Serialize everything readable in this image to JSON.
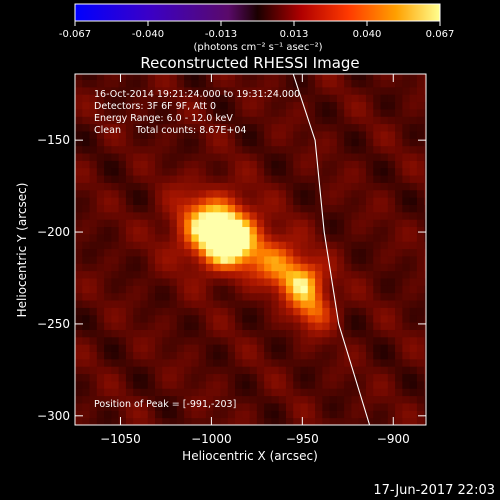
{
  "colorbar": {
    "ticks": [
      "-0.067",
      "-0.040",
      "-0.013",
      "0.013",
      "0.040",
      "0.067"
    ],
    "unit_label": "(photons cm⁻² s⁻¹ asec⁻²)"
  },
  "chart_data": {
    "type": "heatmap",
    "title": "Reconstructed RHESSI Image",
    "xlabel": "Heliocentric X (arcsec)",
    "ylabel": "Heliocentric Y (arcsec)",
    "xlim": [
      -1075,
      -882
    ],
    "ylim": [
      -305,
      -114
    ],
    "x_ticks": [
      -1050,
      -1000,
      -950,
      -900
    ],
    "y_ticks": [
      -150,
      -200,
      -250,
      -300
    ],
    "colormap": "black-purple-red-orange-yellow-white",
    "color_range": [
      -0.067,
      0.067
    ],
    "info": [
      "16-Oct-2014 19:21:24.000 to 19:31:24.000",
      "Detectors: 3F 6F 9F, Att 0",
      "Energy Range: 6.0 - 12.0 keV",
      "Clean     Total counts: 8.67E+04"
    ],
    "peak_label": "Position of Peak = [-991,-203]",
    "peak": [
      -991,
      -203
    ],
    "sources": [
      {
        "x": -991,
        "y": -203,
        "sigma": 12,
        "amp": 0.067
      },
      {
        "x": -950,
        "y": -227,
        "sigma": 9,
        "amp": 0.046
      },
      {
        "x": -965,
        "y": -215,
        "sigma": 10,
        "amp": 0.032
      },
      {
        "x": -943,
        "y": -243,
        "sigma": 8,
        "amp": 0.03
      },
      {
        "x": -1005,
        "y": -195,
        "sigma": 14,
        "amp": 0.03
      }
    ],
    "limb": [
      [
        -955,
        -114
      ],
      [
        -943,
        -150
      ],
      [
        -938,
        -200
      ],
      [
        -930,
        -250
      ],
      [
        -913,
        -305
      ]
    ]
  },
  "footer_date": "17-Jun-2017 22:03"
}
